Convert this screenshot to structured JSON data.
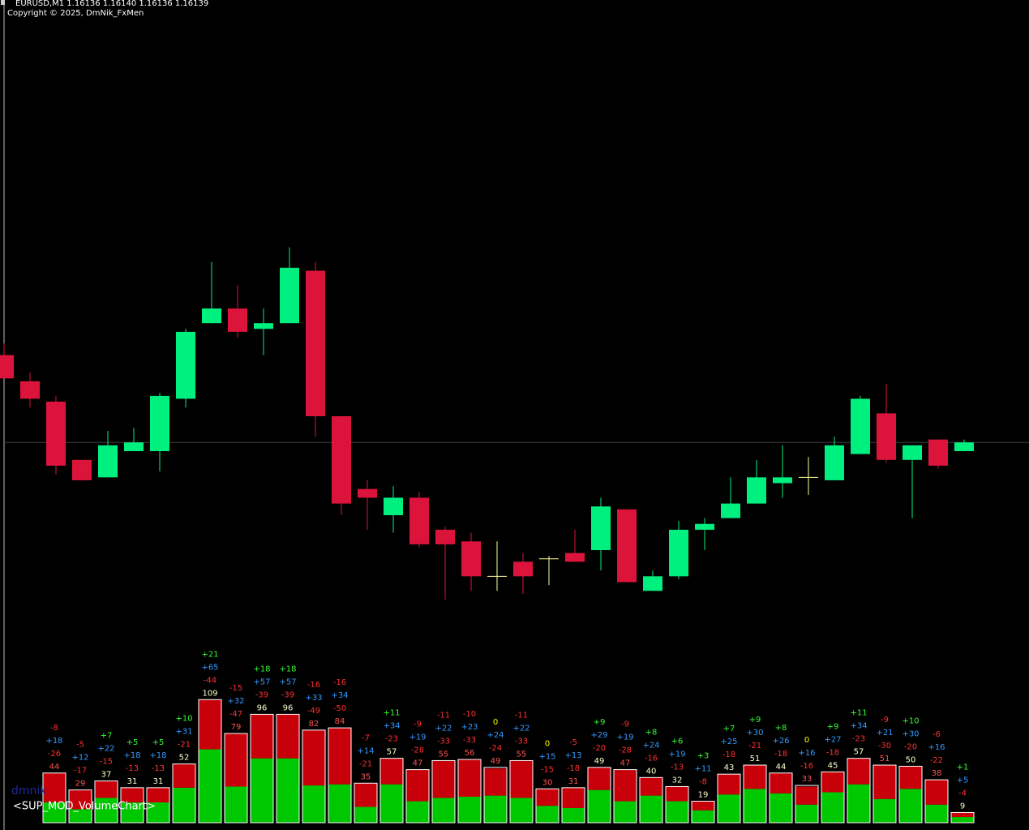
{
  "chart_data": [
    {
      "type": "candlestick",
      "title": "EURUSD,M1  1.16136 1.16140 1.16136 1.16139",
      "subtitle": "Copyright © 2025, DmNik_FxMen",
      "open": [
        1.16169,
        1.1616,
        1.16153,
        1.16133,
        1.16127,
        1.16136,
        1.16136,
        1.16154,
        1.1618,
        1.16185,
        1.16178,
        1.1618,
        1.16198,
        1.16148,
        1.16123,
        1.16114,
        1.1612,
        1.16109,
        1.16105,
        1.16093,
        1.16098,
        1.16099,
        1.16101,
        1.16102,
        1.16116,
        1.16088,
        1.16093,
        1.16109,
        1.16113,
        1.16118,
        1.16125,
        1.16127,
        1.16126,
        1.16135,
        1.16149,
        1.16133,
        1.1614,
        1.16136
      ],
      "high": [
        1.16173,
        1.16163,
        1.16155,
        1.16133,
        1.16143,
        1.16144,
        1.16156,
        1.16178,
        1.16201,
        1.16193,
        1.16185,
        1.16206,
        1.16201,
        1.16148,
        1.16126,
        1.16124,
        1.16122,
        1.1611,
        1.16108,
        1.16105,
        1.16101,
        1.161,
        1.16109,
        1.1612,
        1.16116,
        1.16095,
        1.16112,
        1.16113,
        1.16127,
        1.16133,
        1.16138,
        1.16134,
        1.16141,
        1.16155,
        1.16159,
        1.16138,
        1.1614,
        1.1614
      ],
      "low": [
        1.16161,
        1.16151,
        1.16128,
        1.16126,
        1.16127,
        1.16136,
        1.16129,
        1.16151,
        1.1618,
        1.16175,
        1.16169,
        1.1618,
        1.16141,
        1.16114,
        1.16109,
        1.16108,
        1.16103,
        1.16085,
        1.16088,
        1.16088,
        1.16087,
        1.1609,
        1.16098,
        1.16095,
        1.16091,
        1.16088,
        1.16092,
        1.16102,
        1.16113,
        1.16118,
        1.1612,
        1.16121,
        1.16126,
        1.16135,
        1.16132,
        1.16113,
        1.1613,
        1.16136
      ],
      "close": [
        1.16161,
        1.16154,
        1.16131,
        1.16126,
        1.16138,
        1.16139,
        1.16155,
        1.16177,
        1.16185,
        1.16177,
        1.1618,
        1.16199,
        1.16148,
        1.16118,
        1.1612,
        1.1612,
        1.16104,
        1.16104,
        1.16093,
        1.16093,
        1.16093,
        1.16099,
        1.16098,
        1.16117,
        1.16091,
        1.16093,
        1.16109,
        1.16111,
        1.16118,
        1.16127,
        1.16127,
        1.16127,
        1.16138,
        1.16154,
        1.16133,
        1.16138,
        1.16131,
        1.16139
      ],
      "ylim": [
        1.16068,
        1.16291
      ],
      "up_color": "#00f080",
      "down_color": "#dc143c",
      "doji_color": "#ffff99"
    },
    {
      "type": "volume-bar",
      "title": "<SUP_MOD_VolumeChart>",
      "watermark": "dmnik",
      "ylim": [
        0,
        120
      ],
      "delta": {
        "values": [
          -8,
          -5,
          7,
          5,
          5,
          10,
          21,
          -15,
          18,
          18,
          -16,
          -16,
          -7,
          11,
          -9,
          -11,
          -10,
          0,
          -11,
          0,
          -5,
          9,
          -9,
          8,
          6,
          3,
          7,
          9,
          8,
          0,
          9,
          11,
          -9,
          10,
          -6,
          1
        ],
        "value_labels": [
          "-8",
          "-5",
          "+7",
          "+5",
          "+5",
          "+10",
          "+21",
          "-15",
          "+18",
          "+18",
          "-16",
          "-16",
          "-7",
          "+11",
          "-9",
          "-11",
          "-10",
          "0",
          "-11",
          "0",
          "-5",
          "+9",
          "-9",
          "+8",
          "+6",
          "+3",
          "+7",
          "+9",
          "+8",
          "0",
          "+9",
          "+11",
          "-9",
          "+10",
          "-6",
          "+1"
        ],
        "positive_color": "#33ff33",
        "negative_color": "#ff3030",
        "zero_color": "#ffff00"
      },
      "buy": {
        "color": "#00c800",
        "label_color": "#3399ff",
        "values": [
          18,
          12,
          22,
          18,
          18,
          31,
          65,
          32,
          57,
          57,
          33,
          34,
          14,
          34,
          19,
          22,
          23,
          24,
          22,
          15,
          13,
          29,
          19,
          24,
          19,
          11,
          25,
          30,
          26,
          16,
          27,
          34,
          21,
          30,
          16,
          5
        ],
        "value_labels": [
          "+18",
          "+12",
          "+22",
          "+18",
          "+18",
          "+31",
          "+65",
          "+32",
          "+57",
          "+57",
          "+33",
          "+34",
          "+14",
          "+34",
          "+19",
          "+22",
          "+23",
          "+24",
          "+22",
          "+15",
          "+13",
          "+29",
          "+19",
          "+24",
          "+19",
          "+11",
          "+25",
          "+30",
          "+26",
          "+16",
          "+27",
          "+34",
          "+21",
          "+30",
          "+16",
          "+5"
        ]
      },
      "sell": {
        "color": "#c8000a",
        "label_color": "#ff3030",
        "values": [
          -26,
          -17,
          -15,
          -13,
          -13,
          -21,
          -44,
          -47,
          -39,
          -39,
          -49,
          -50,
          -21,
          -23,
          -28,
          -33,
          -33,
          -24,
          -33,
          -15,
          -18,
          -20,
          -28,
          -16,
          -13,
          -8,
          -18,
          -21,
          -18,
          -16,
          -18,
          -23,
          -30,
          -20,
          -22,
          -4
        ]
      },
      "total": {
        "values": [
          44,
          29,
          37,
          31,
          31,
          52,
          109,
          79,
          96,
          96,
          82,
          84,
          35,
          57,
          47,
          55,
          56,
          49,
          55,
          30,
          31,
          49,
          47,
          40,
          32,
          19,
          43,
          51,
          44,
          33,
          45,
          57,
          51,
          50,
          38,
          9
        ],
        "positive_color": "#ffffcc",
        "negative_color": "#ff5050"
      }
    }
  ]
}
